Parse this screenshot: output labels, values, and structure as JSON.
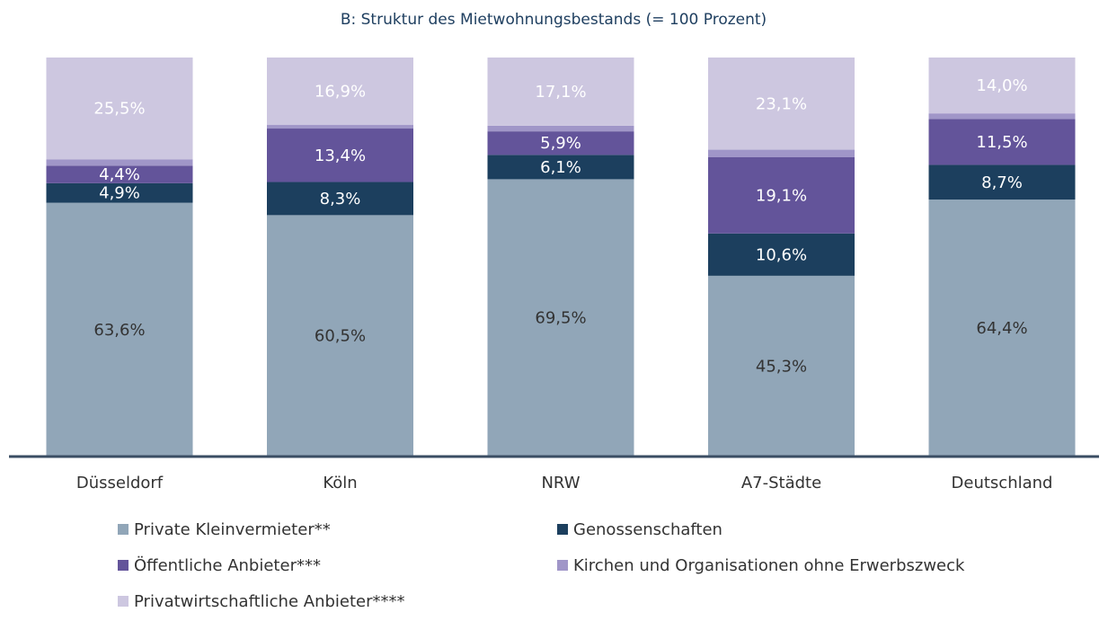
{
  "chart_data": {
    "type": "stacked_bar",
    "title": "B: Struktur des Mietwohnungsbestands (= 100 Prozent)",
    "categories": [
      "Düsseldorf",
      "Köln",
      "NRW",
      "A7-Städte",
      "Deutschland"
    ],
    "ylim": [
      0,
      100
    ],
    "series": [
      {
        "name": "Private Kleinvermieter**",
        "color": "#91a6b8",
        "values": [
          63.6,
          60.5,
          69.5,
          45.3,
          64.4
        ],
        "value_labels": [
          "63,6%",
          "60,5%",
          "69,5%",
          "45,3%",
          "64,4%"
        ]
      },
      {
        "name": "Genossenschaften",
        "color": "#1c3f5e",
        "values": [
          4.9,
          8.3,
          6.1,
          10.6,
          8.7
        ],
        "value_labels": [
          "4,9%",
          "8,3%",
          "6,1%",
          "10,6%",
          "8,7%"
        ]
      },
      {
        "name": "Öffentliche Anbieter***",
        "color": "#63549a",
        "values": [
          4.4,
          13.4,
          5.9,
          19.1,
          11.5
        ],
        "value_labels": [
          "4,4%",
          "13,4%",
          "5,9%",
          "19,1%",
          "11,5%"
        ]
      },
      {
        "name": "Kirchen und Organisationen ohne Erwerbszweck",
        "color": "#a096c8",
        "values": [
          1.6,
          0.9,
          1.4,
          1.9,
          1.4
        ]
      },
      {
        "name": "Privatwirtschaftliche Anbieter****",
        "color": "#cdc7e0",
        "values": [
          25.5,
          16.9,
          17.1,
          23.1,
          14.0
        ],
        "value_labels": [
          "25,5%",
          "16,9%",
          "17,1%",
          "23,1%",
          "14,0%"
        ]
      }
    ]
  }
}
